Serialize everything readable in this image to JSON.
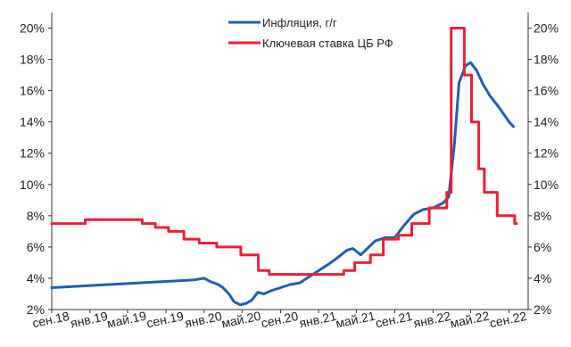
{
  "chart_data": {
    "type": "line",
    "y_unit": "%",
    "ylim": [
      2,
      21
    ],
    "y_ticks": [
      "2%",
      "4%",
      "6%",
      "8%",
      "10%",
      "12%",
      "14%",
      "16%",
      "18%",
      "20%"
    ],
    "y_ticks_right": [
      "2%",
      "4%",
      "6%",
      "8%",
      "10%",
      "12%",
      "14%",
      "16%",
      "18%",
      "20%"
    ],
    "x_ticks": [
      "сен.18",
      "янв.19",
      "май.19",
      "сен.19",
      "янв.20",
      "май.20",
      "сен.20",
      "янв.21",
      "май.21",
      "сен.21",
      "янв.22",
      "май.22",
      "сен.22"
    ],
    "legend_position": "top-center",
    "grid": false,
    "series": [
      {
        "name": "Инфляция, г/г",
        "color": "#1f5fae",
        "points": [
          [
            "2018-09-01",
            3.4
          ],
          [
            "2018-12-01",
            3.5
          ],
          [
            "2019-03-01",
            3.6
          ],
          [
            "2019-06-01",
            3.7
          ],
          [
            "2019-09-01",
            3.8
          ],
          [
            "2019-12-01",
            3.9
          ],
          [
            "2020-01-01",
            4.0
          ],
          [
            "2020-01-20",
            3.8
          ],
          [
            "2020-02-15",
            3.6
          ],
          [
            "2020-03-01",
            3.4
          ],
          [
            "2020-03-20",
            3.0
          ],
          [
            "2020-04-05",
            2.5
          ],
          [
            "2020-04-25",
            2.3
          ],
          [
            "2020-05-15",
            2.4
          ],
          [
            "2020-06-01",
            2.6
          ],
          [
            "2020-06-20",
            3.1
          ],
          [
            "2020-07-10",
            3.0
          ],
          [
            "2020-08-01",
            3.2
          ],
          [
            "2020-09-01",
            3.4
          ],
          [
            "2020-10-01",
            3.6
          ],
          [
            "2020-11-01",
            3.7
          ],
          [
            "2020-12-01",
            4.1
          ],
          [
            "2021-01-01",
            4.5
          ],
          [
            "2021-02-01",
            4.9
          ],
          [
            "2021-03-01",
            5.3
          ],
          [
            "2021-04-01",
            5.8
          ],
          [
            "2021-04-20",
            5.9
          ],
          [
            "2021-05-15",
            5.5
          ],
          [
            "2021-06-05",
            5.9
          ],
          [
            "2021-07-01",
            6.4
          ],
          [
            "2021-08-01",
            6.6
          ],
          [
            "2021-09-01",
            6.6
          ],
          [
            "2021-10-01",
            7.4
          ],
          [
            "2021-11-01",
            8.1
          ],
          [
            "2021-12-01",
            8.4
          ],
          [
            "2022-01-01",
            8.5
          ],
          [
            "2022-02-01",
            8.8
          ],
          [
            "2022-02-20",
            9.2
          ],
          [
            "2022-03-10",
            12.5
          ],
          [
            "2022-03-25",
            16.5
          ],
          [
            "2022-04-15",
            17.6
          ],
          [
            "2022-05-01",
            17.8
          ],
          [
            "2022-05-20",
            17.3
          ],
          [
            "2022-06-10",
            16.4
          ],
          [
            "2022-07-01",
            15.7
          ],
          [
            "2022-08-01",
            14.9
          ],
          [
            "2022-09-01",
            14.0
          ],
          [
            "2022-09-15",
            13.7
          ]
        ]
      },
      {
        "name": "Ключевая ставка ЦБ РФ",
        "color": "#e8203a",
        "step": true,
        "points": [
          [
            "2018-09-01",
            7.5
          ],
          [
            "2018-12-17",
            7.75
          ],
          [
            "2019-06-17",
            7.5
          ],
          [
            "2019-07-29",
            7.25
          ],
          [
            "2019-09-09",
            7.0
          ],
          [
            "2019-10-28",
            6.5
          ],
          [
            "2019-12-16",
            6.25
          ],
          [
            "2020-02-10",
            6.0
          ],
          [
            "2020-04-27",
            5.5
          ],
          [
            "2020-06-22",
            4.5
          ],
          [
            "2020-07-27",
            4.25
          ],
          [
            "2021-03-22",
            4.5
          ],
          [
            "2021-04-26",
            5.0
          ],
          [
            "2021-06-15",
            5.5
          ],
          [
            "2021-07-26",
            6.5
          ],
          [
            "2021-09-13",
            6.75
          ],
          [
            "2021-10-25",
            7.5
          ],
          [
            "2021-12-20",
            8.5
          ],
          [
            "2022-02-14",
            9.5
          ],
          [
            "2022-02-28",
            20.0
          ],
          [
            "2022-04-11",
            17.0
          ],
          [
            "2022-05-04",
            14.0
          ],
          [
            "2022-05-27",
            11.0
          ],
          [
            "2022-06-14",
            9.5
          ],
          [
            "2022-07-25",
            8.0
          ],
          [
            "2022-09-19",
            7.5
          ],
          [
            "2022-09-25",
            7.5
          ]
        ]
      }
    ]
  }
}
